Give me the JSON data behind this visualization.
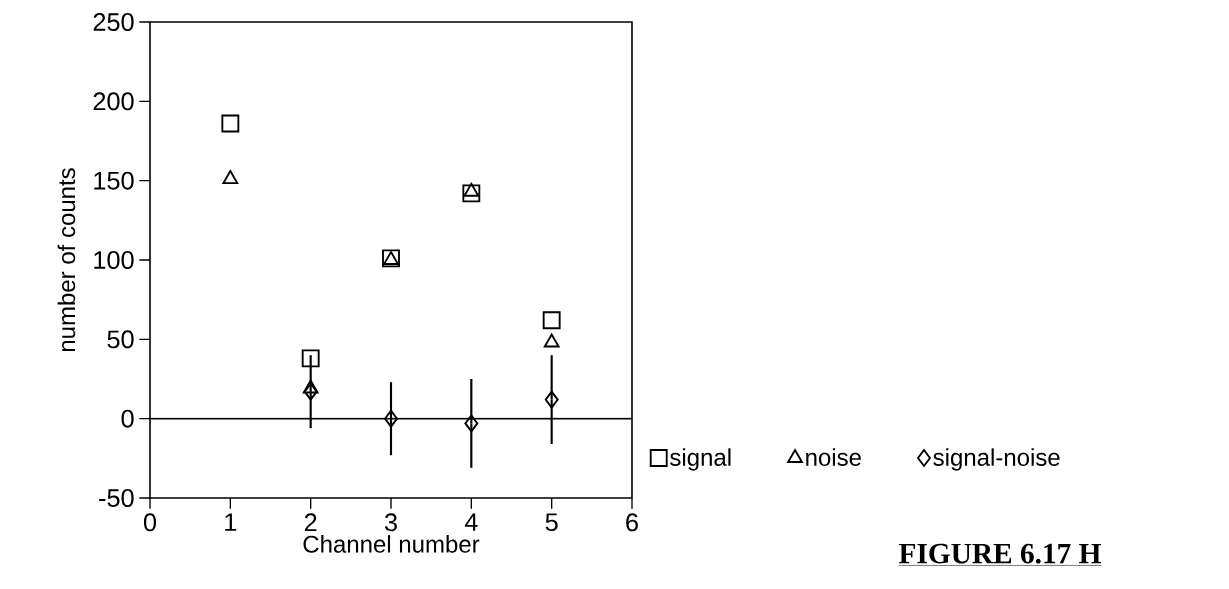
{
  "chart_data": {
    "type": "scatter",
    "xlabel": "Channel number",
    "ylabel": "number of counts",
    "x": [
      1,
      2,
      3,
      4,
      5
    ],
    "series": [
      {
        "name": "signal",
        "color": "#000000",
        "marker": "square",
        "values": [
          186,
          38,
          101,
          142,
          62
        ]
      },
      {
        "name": "noise",
        "color": "#000000",
        "marker": "triangle",
        "values": [
          151,
          19,
          100,
          143,
          48
        ]
      },
      {
        "name": "signal-noise",
        "color": "#000000",
        "marker": "diamond",
        "values": [
          null,
          17,
          0,
          -3,
          12
        ],
        "errors": [
          null,
          23,
          23,
          28,
          28
        ]
      }
    ],
    "xlim": [
      0,
      6
    ],
    "xticks": [
      0,
      1,
      2,
      3,
      4,
      5,
      6
    ],
    "ylim": [
      -50,
      250
    ],
    "yticks": [
      -50,
      0,
      50,
      100,
      150,
      200,
      250
    ],
    "ref_lines": [
      {
        "axis": "y",
        "value": 0,
        "color": "#000000"
      }
    ],
    "legend": "right",
    "grid": false,
    "annotations": [
      "**FIGURE 6.17 H**"
    ]
  }
}
